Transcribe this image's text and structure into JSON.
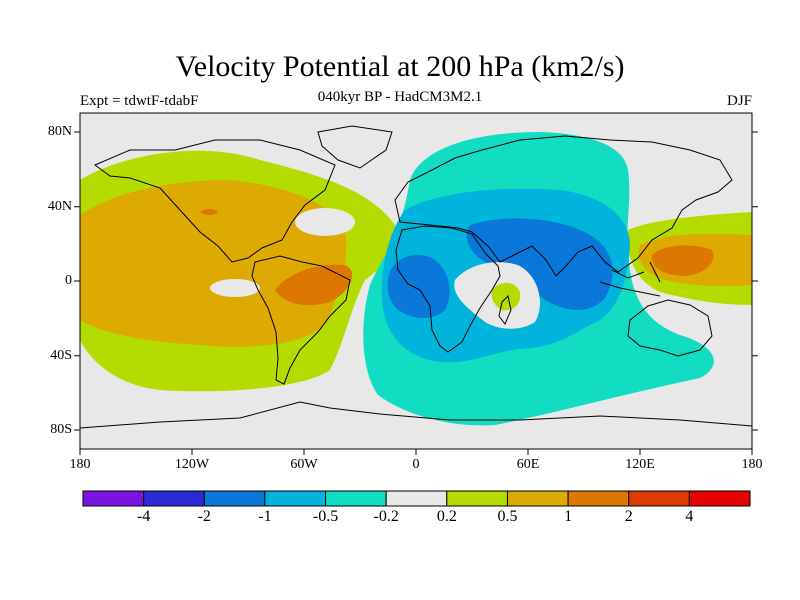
{
  "title": "Velocity Potential at 200 hPa (km2/s)",
  "subtitle": "040kyr BP - HadCM3M2.1",
  "left_label": "Expt = tdwtF-tdabF",
  "right_label": "DJF",
  "y_ticks": [
    "80N",
    "40N",
    "0",
    "40S",
    "80S"
  ],
  "x_ticks": [
    "180",
    "120W",
    "60W",
    "0",
    "60E",
    "120E",
    "180"
  ],
  "colorbar": {
    "colors": [
      "#7a14e0",
      "#2b2bd6",
      "#0a78d8",
      "#00b4dc",
      "#12dcc2",
      "#e8e8e8",
      "#b4dc00",
      "#dcaa00",
      "#dc7800",
      "#dc3c00",
      "#e60000"
    ],
    "labels": [
      "-4",
      "-2",
      "-1",
      "-0.5",
      "-0.2",
      "0.2",
      "0.5",
      "1",
      "2",
      "4"
    ]
  },
  "chart_data": {
    "type": "heatmap",
    "variable": "Velocity Potential at 200 hPa",
    "units": "km2/s",
    "projection": "cylindrical equidistant",
    "lon_range": [
      -180,
      180
    ],
    "lat_range": [
      -90,
      90
    ],
    "contour_levels": [
      -4,
      -2,
      -1,
      -0.5,
      -0.2,
      0.2,
      0.5,
      1,
      2,
      4
    ],
    "features": [
      {
        "name": "positive anomaly over Pacific and Americas",
        "lon": [
          -180,
          -20
        ],
        "lat": [
          -55,
          60
        ],
        "value_range": [
          0.2,
          1
        ]
      },
      {
        "name": "maximum over South America",
        "lon": -55,
        "lat": 0,
        "value_range": [
          1,
          2
        ]
      },
      {
        "name": "weak maximum near Mexico",
        "lon": -100,
        "lat": 35,
        "value_range": [
          1,
          2
        ]
      },
      {
        "name": "positive anomaly over western Pacific",
        "lon": [
          120,
          180
        ],
        "lat": [
          -15,
          25
        ],
        "value_range": [
          0.2,
          2
        ]
      },
      {
        "name": "negative anomaly over Africa, Eurasia and Indian Ocean",
        "lon": [
          -15,
          120
        ],
        "lat": [
          -80,
          75
        ],
        "value_range": [
          -1,
          -0.2
        ]
      },
      {
        "name": "minimum over central Africa",
        "lon": 20,
        "lat": -5,
        "value_range": [
          -2,
          -1
        ]
      },
      {
        "name": "minimum over India and Indian Ocean",
        "lon": 80,
        "lat": 10,
        "value_range": [
          -2,
          -1
        ]
      },
      {
        "name": "positive pocket near Madagascar",
        "lon": 50,
        "lat": -10,
        "value_range": [
          0.2,
          0.5
        ]
      }
    ]
  }
}
